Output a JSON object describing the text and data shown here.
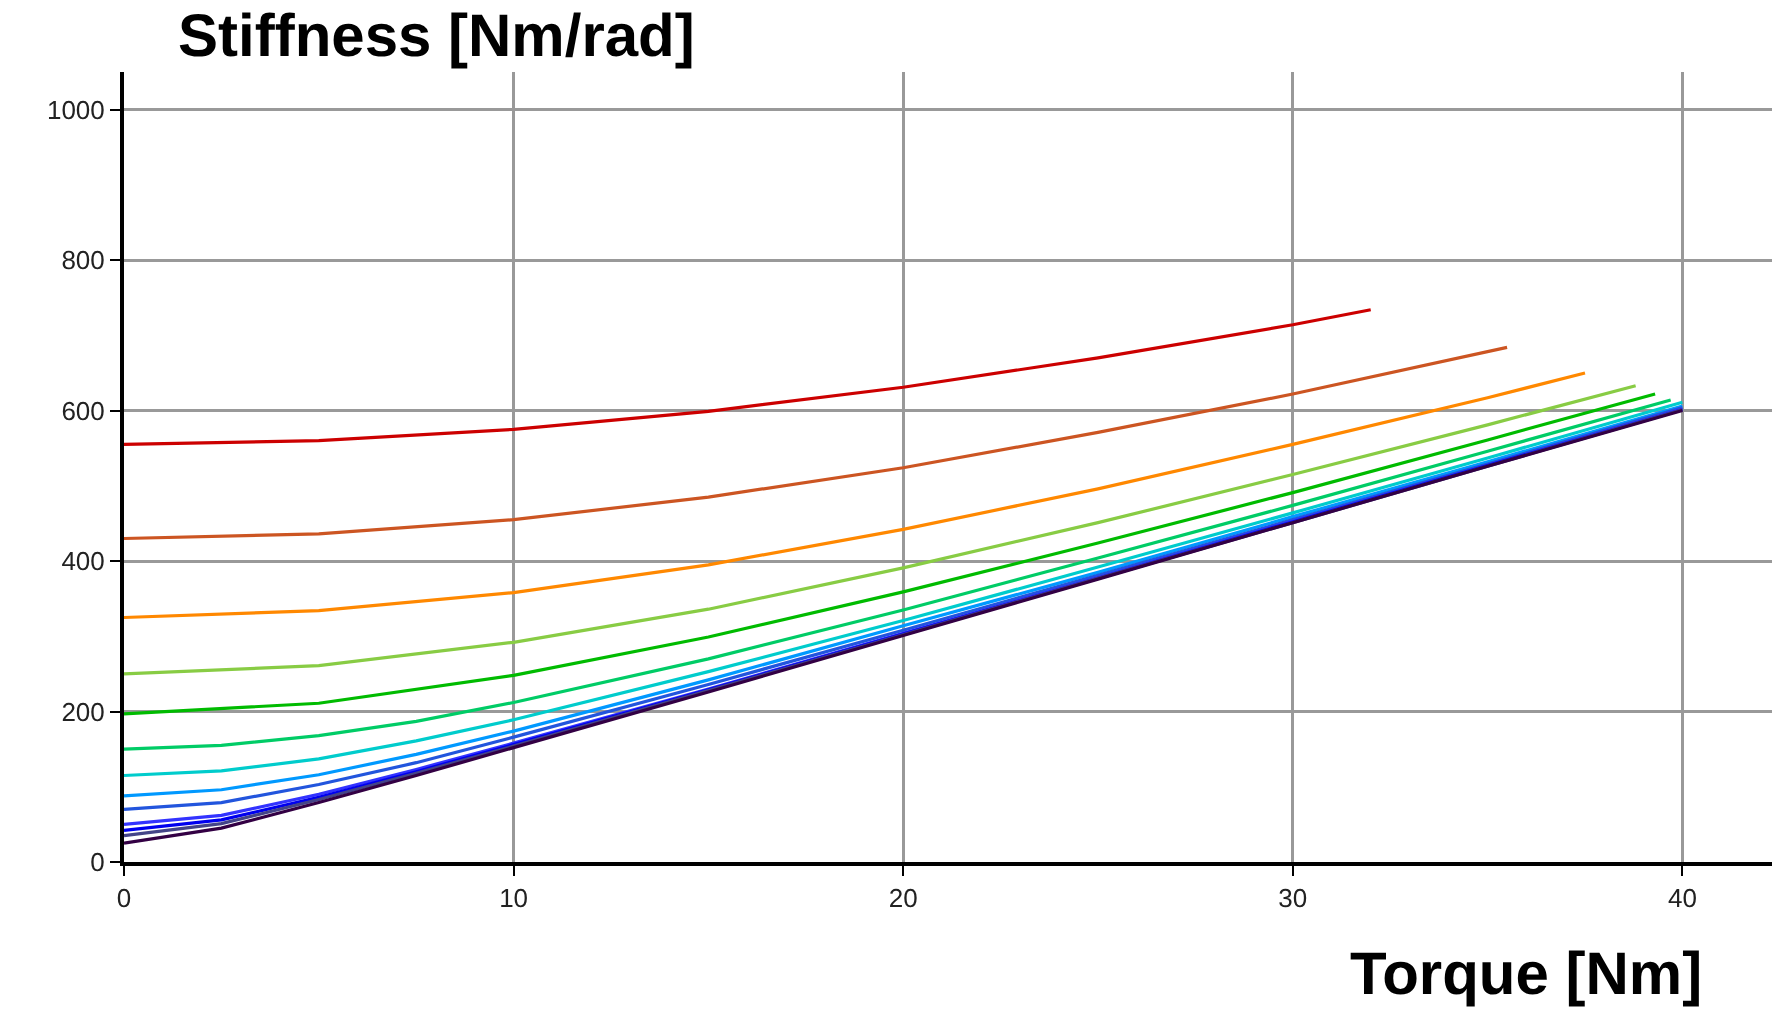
{
  "chart_data": {
    "type": "line",
    "ylabel": "Stiffness [Nm/rad]",
    "xlabel": "Torque [Nm]",
    "xlim": [
      0,
      42.3
    ],
    "xticks": [
      0,
      10,
      20,
      30,
      40
    ],
    "ylim": [
      0,
      1050
    ],
    "yticks": [
      0,
      200,
      400,
      600,
      800,
      1000
    ],
    "grid": true,
    "marker": "none",
    "line_style": "solid",
    "series": [
      {
        "color": "#cc0000",
        "x": [
          0,
          5,
          10,
          15,
          20,
          25,
          30,
          32
        ],
        "values": [
          555,
          560,
          575,
          599,
          631,
          670,
          714,
          734
        ]
      },
      {
        "color": "#cc5522",
        "x": [
          0,
          5,
          10,
          15,
          20,
          25,
          30,
          35.5
        ],
        "values": [
          430,
          436,
          455,
          485,
          524,
          571,
          622,
          684
        ]
      },
      {
        "color": "#ff8800",
        "x": [
          0,
          5,
          10,
          15,
          20,
          25,
          30,
          35,
          37.5
        ],
        "values": [
          325,
          334,
          358,
          395,
          442,
          496,
          555,
          617,
          650
        ]
      },
      {
        "color": "#88cc44",
        "x": [
          0,
          5,
          10,
          15,
          20,
          25,
          30,
          35,
          38.8
        ],
        "values": [
          250,
          261,
          292,
          336,
          391,
          451,
          515,
          581,
          633
        ]
      },
      {
        "color": "#00bb00",
        "x": [
          0,
          5,
          10,
          15,
          20,
          25,
          30,
          35,
          39.3
        ],
        "values": [
          197,
          211,
          248,
          299,
          359,
          424,
          491,
          561,
          622
        ]
      },
      {
        "color": "#00cc66",
        "x": [
          0,
          2.5,
          5,
          7.5,
          10,
          15,
          20,
          25,
          30,
          35,
          39.7
        ],
        "values": [
          150,
          155,
          168,
          187,
          212,
          270,
          335,
          404,
          474,
          546,
          614
        ]
      },
      {
        "color": "#00cccc",
        "x": [
          0,
          2.5,
          5,
          7.5,
          10,
          15,
          20,
          25,
          30,
          35,
          40
        ],
        "values": [
          115,
          121,
          137,
          161,
          189,
          253,
          321,
          392,
          464,
          537,
          611
        ]
      },
      {
        "color": "#0099ff",
        "x": [
          0,
          2.5,
          5,
          7.5,
          10,
          15,
          20,
          25,
          30,
          35,
          40
        ],
        "values": [
          88,
          96,
          116,
          143,
          174,
          242,
          314,
          385,
          459,
          532,
          606
        ]
      },
      {
        "color": "#2255dd",
        "x": [
          0,
          2.5,
          5,
          7.5,
          10,
          15,
          20,
          25,
          30,
          35,
          40
        ],
        "values": [
          70,
          79,
          103,
          132,
          166,
          236,
          308,
          381,
          455,
          529,
          604
        ]
      },
      {
        "color": "#3333ff",
        "x": [
          0,
          2.5,
          5,
          7.5,
          10,
          15,
          20,
          25,
          30,
          35,
          40
        ],
        "values": [
          50,
          62,
          90,
          123,
          158,
          230,
          304,
          378,
          453,
          527,
          602
        ]
      },
      {
        "color": "#0000ee",
        "x": [
          0,
          2.5,
          5,
          7.5,
          10,
          15,
          20,
          25,
          30,
          35,
          40
        ],
        "values": [
          42,
          56,
          86,
          120,
          156,
          229,
          303,
          377,
          452,
          527,
          601
        ]
      },
      {
        "color": "#444488",
        "x": [
          0,
          2.5,
          5,
          7.5,
          10,
          15,
          20,
          25,
          30,
          35,
          40
        ],
        "values": [
          35,
          51,
          83,
          118,
          154,
          228,
          302,
          377,
          451,
          526,
          601
        ]
      },
      {
        "color": "#330044",
        "x": [
          0,
          2.5,
          5,
          7.5,
          10,
          15,
          20,
          25,
          30,
          35,
          40
        ],
        "values": [
          25,
          45,
          79,
          115,
          152,
          226,
          301,
          376,
          451,
          526,
          600
        ]
      }
    ]
  }
}
